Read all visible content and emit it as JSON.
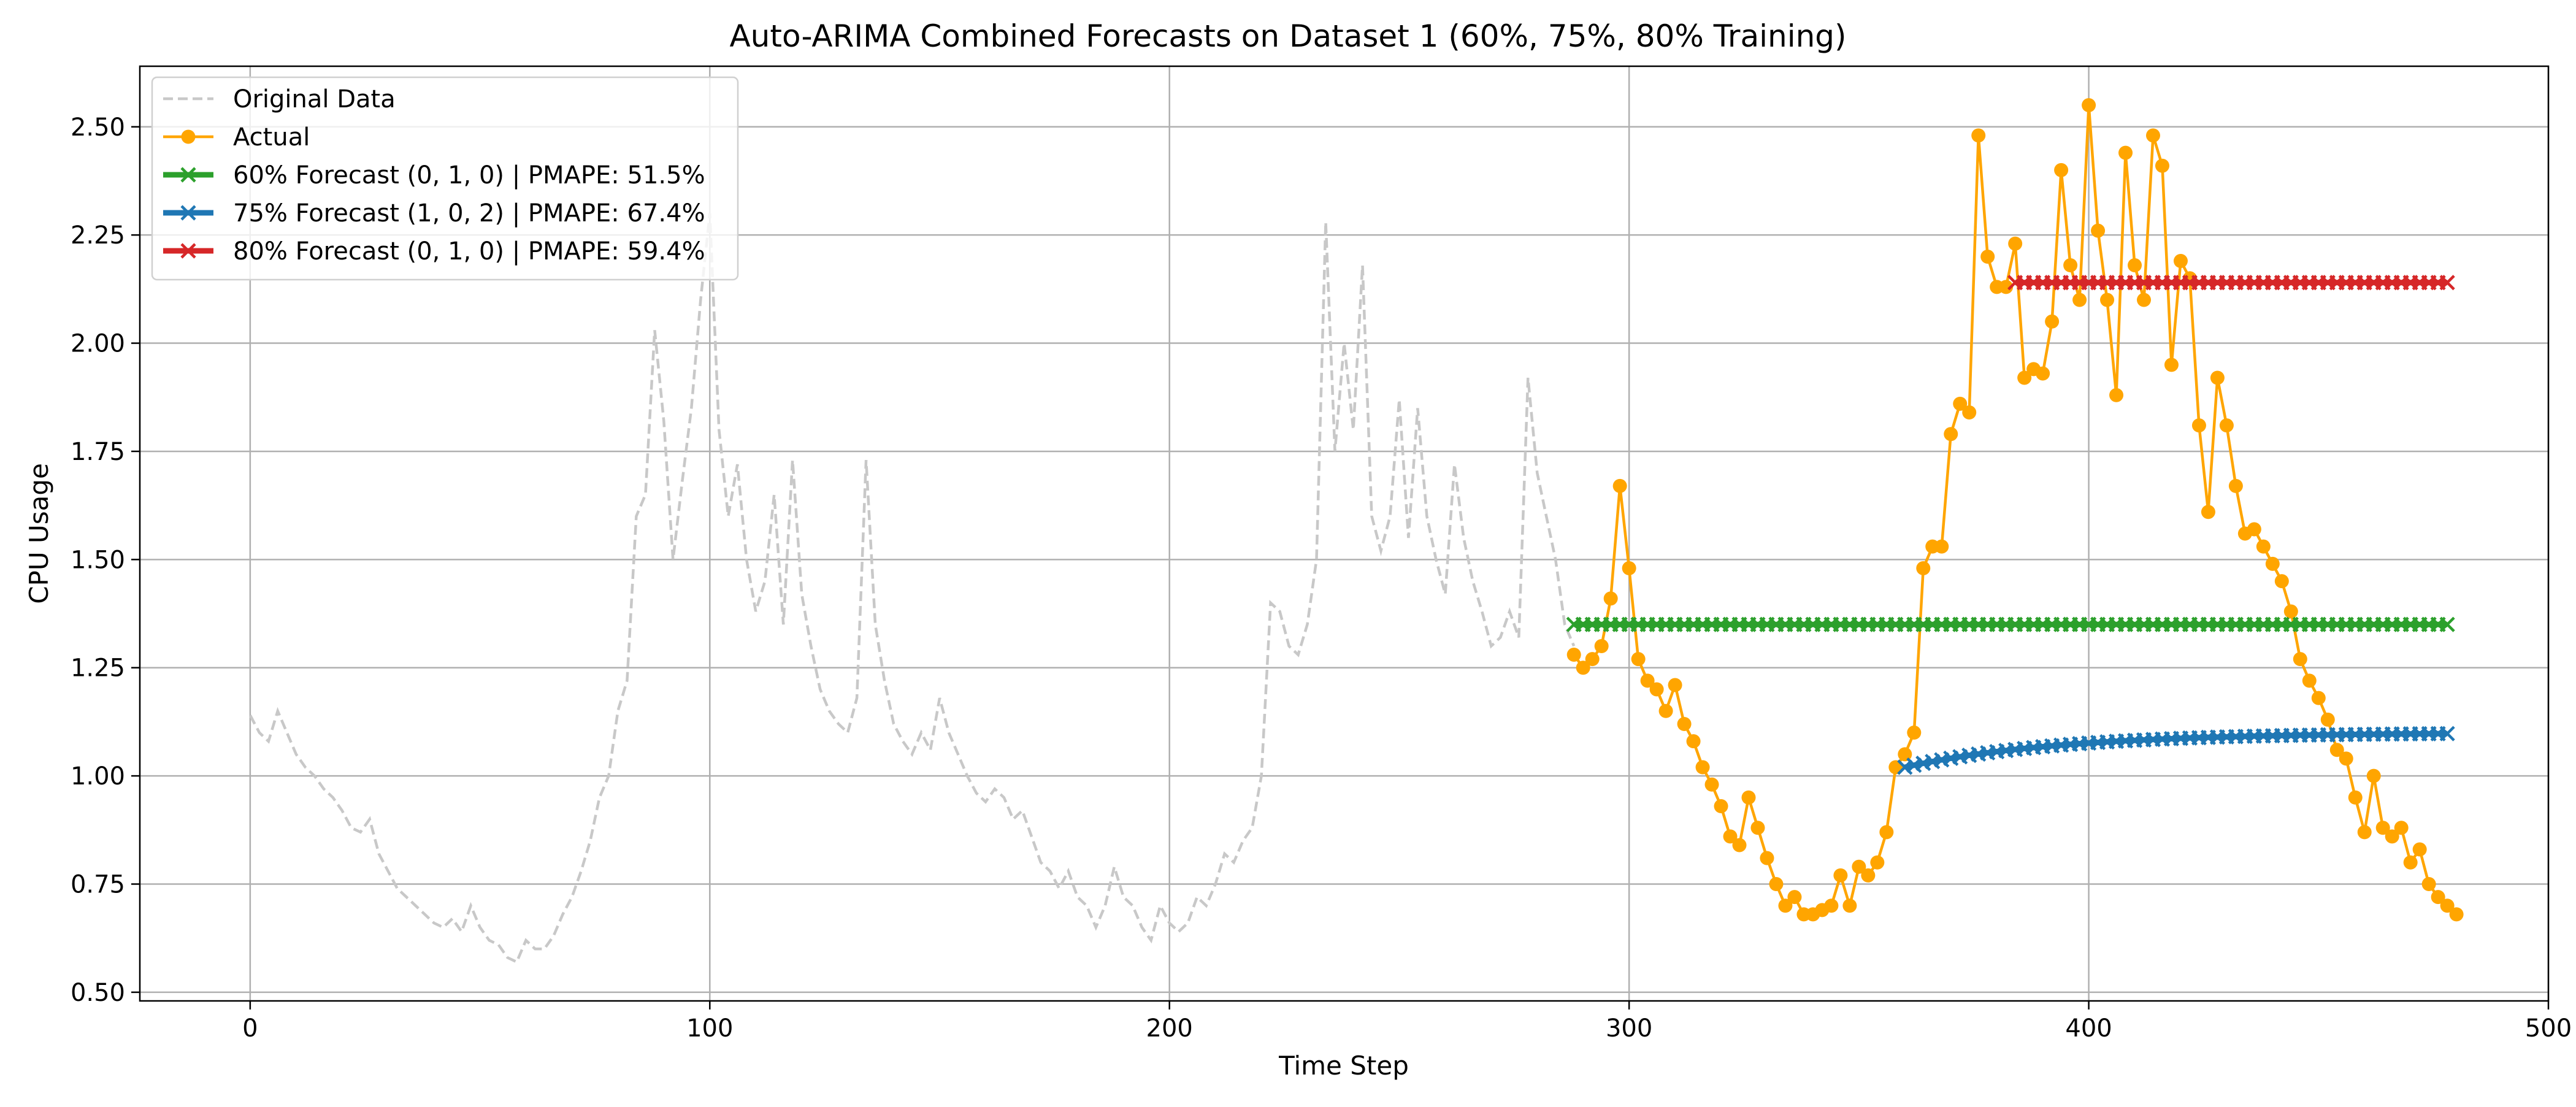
{
  "chart_data": {
    "type": "line",
    "title": "Auto-ARIMA Combined Forecasts on Dataset 1 (60%, 75%, 80% Training)",
    "xlabel": "Time Step",
    "ylabel": "CPU Usage",
    "xlim": [
      -24,
      500
    ],
    "ylim": [
      0.48,
      2.64
    ],
    "xticks": [
      0,
      100,
      200,
      300,
      400,
      500
    ],
    "xtick_labels": [
      "0",
      "100",
      "200",
      "300",
      "400",
      "500"
    ],
    "yticks": [
      0.5,
      0.75,
      1.0,
      1.25,
      1.5,
      1.75,
      2.0,
      2.25,
      2.5
    ],
    "ytick_labels": [
      "0.50",
      "0.75",
      "1.00",
      "1.25",
      "1.50",
      "1.75",
      "2.00",
      "2.25",
      "2.50"
    ],
    "grid": true,
    "legend_position": "top-left",
    "legend": [
      {
        "label": "Original Data",
        "series": "original"
      },
      {
        "label": "Actual",
        "series": "actual"
      },
      {
        "label": "60% Forecast (0, 1, 0) | PMAPE: 51.5%",
        "series": "f60"
      },
      {
        "label": "75% Forecast (1, 0, 2) | PMAPE: 67.4%",
        "series": "f75"
      },
      {
        "label": "80% Forecast (0, 1, 0) | PMAPE: 59.4%",
        "series": "f80"
      }
    ],
    "colors": {
      "original": "#c8c8c8",
      "actual": "#ffa500",
      "f60": "#2ca02c",
      "f75": "#1f77b4",
      "f80": "#d62728"
    },
    "series": [
      {
        "id": "original",
        "name": "Original Data",
        "style": "dashed",
        "x": [
          0,
          2,
          4,
          6,
          8,
          10,
          12,
          14,
          16,
          18,
          20,
          22,
          24,
          26,
          28,
          30,
          32,
          34,
          36,
          38,
          40,
          42,
          44,
          46,
          48,
          50,
          52,
          54,
          56,
          58,
          60,
          62,
          64,
          66,
          68,
          70,
          72,
          74,
          76,
          78,
          80,
          82,
          84,
          86,
          88,
          90,
          92,
          94,
          96,
          98,
          100,
          102,
          104,
          106,
          108,
          110,
          112,
          114,
          116,
          118,
          120,
          122,
          124,
          126,
          128,
          130,
          132,
          134,
          136,
          138,
          140,
          142,
          144,
          146,
          148,
          150,
          152,
          154,
          156,
          158,
          160,
          162,
          164,
          166,
          168,
          170,
          172,
          174,
          176,
          178,
          180,
          182,
          184,
          186,
          188,
          190,
          192,
          194,
          196,
          198,
          200,
          202,
          204,
          206,
          208,
          210,
          212,
          214,
          216,
          218,
          220,
          222,
          224,
          226,
          228,
          230,
          232,
          234,
          236,
          238,
          240,
          242,
          244,
          246,
          248,
          250,
          252,
          254,
          256,
          258,
          260,
          262,
          264,
          266,
          268,
          270,
          272,
          274,
          276,
          278,
          280,
          282,
          284,
          286,
          288
        ],
        "y": [
          1.14,
          1.1,
          1.08,
          1.15,
          1.1,
          1.05,
          1.02,
          1.0,
          0.97,
          0.95,
          0.92,
          0.88,
          0.87,
          0.9,
          0.82,
          0.78,
          0.74,
          0.72,
          0.7,
          0.68,
          0.66,
          0.65,
          0.67,
          0.64,
          0.7,
          0.65,
          0.62,
          0.61,
          0.58,
          0.57,
          0.62,
          0.6,
          0.6,
          0.63,
          0.68,
          0.72,
          0.78,
          0.85,
          0.95,
          1.0,
          1.15,
          1.22,
          1.6,
          1.65,
          2.03,
          1.82,
          1.5,
          1.68,
          1.85,
          2.1,
          2.3,
          1.8,
          1.6,
          1.72,
          1.5,
          1.38,
          1.45,
          1.65,
          1.35,
          1.73,
          1.42,
          1.3,
          1.2,
          1.15,
          1.12,
          1.1,
          1.18,
          1.73,
          1.35,
          1.22,
          1.12,
          1.08,
          1.05,
          1.1,
          1.06,
          1.18,
          1.1,
          1.05,
          1.0,
          0.96,
          0.94,
          0.97,
          0.95,
          0.9,
          0.92,
          0.86,
          0.8,
          0.78,
          0.74,
          0.78,
          0.72,
          0.7,
          0.65,
          0.7,
          0.79,
          0.72,
          0.7,
          0.65,
          0.62,
          0.7,
          0.66,
          0.64,
          0.66,
          0.72,
          0.7,
          0.75,
          0.82,
          0.8,
          0.85,
          0.88,
          1.0,
          1.4,
          1.38,
          1.3,
          1.28,
          1.35,
          1.5,
          2.28,
          1.75,
          2.0,
          1.8,
          2.18,
          1.6,
          1.52,
          1.6,
          1.87,
          1.55,
          1.85,
          1.6,
          1.5,
          1.42,
          1.72,
          1.55,
          1.45,
          1.38,
          1.3,
          1.32,
          1.38,
          1.32,
          1.92,
          1.7,
          1.6,
          1.5,
          1.35,
          1.3
        ]
      },
      {
        "id": "actual",
        "name": "Actual",
        "style": "solid-markers",
        "x": [
          288,
          290,
          292,
          294,
          296,
          298,
          300,
          302,
          304,
          306,
          308,
          310,
          312,
          314,
          316,
          318,
          320,
          322,
          324,
          326,
          328,
          330,
          332,
          334,
          336,
          338,
          340,
          342,
          344,
          346,
          348,
          350,
          352,
          354,
          356,
          358,
          360,
          362,
          364,
          366,
          368,
          370,
          372,
          374,
          376,
          378,
          380,
          382,
          384,
          386,
          388,
          390,
          392,
          394,
          396,
          398,
          400,
          402,
          404,
          406,
          408,
          410,
          412,
          414,
          416,
          418,
          420,
          422,
          424,
          426,
          428,
          430,
          432,
          434,
          436,
          438,
          440,
          442,
          444,
          446,
          448,
          450,
          452,
          454,
          456,
          458,
          460,
          462,
          464,
          466,
          468,
          470,
          472,
          474,
          476,
          478,
          480
        ],
        "y": [
          1.28,
          1.25,
          1.27,
          1.3,
          1.41,
          1.67,
          1.48,
          1.27,
          1.22,
          1.2,
          1.15,
          1.21,
          1.12,
          1.08,
          1.02,
          0.98,
          0.93,
          0.86,
          0.84,
          0.95,
          0.88,
          0.81,
          0.75,
          0.7,
          0.72,
          0.68,
          0.68,
          0.69,
          0.7,
          0.77,
          0.7,
          0.79,
          0.77,
          0.8,
          0.87,
          1.02,
          1.05,
          1.1,
          1.48,
          1.53,
          1.53,
          1.79,
          1.86,
          1.84,
          2.48,
          2.2,
          2.13,
          2.13,
          2.23,
          1.92,
          1.94,
          1.93,
          2.05,
          2.4,
          2.18,
          2.1,
          2.55,
          2.26,
          2.1,
          1.88,
          2.44,
          2.18,
          2.1,
          2.48,
          2.41,
          1.95,
          2.19,
          2.15,
          1.81,
          1.61,
          1.92,
          1.81,
          1.67,
          1.56,
          1.57,
          1.53,
          1.49,
          1.45,
          1.38,
          1.27,
          1.22,
          1.18,
          1.13,
          1.06,
          1.04,
          0.95,
          0.87,
          1.0,
          0.88,
          0.86,
          0.88,
          0.8,
          0.83,
          0.75,
          0.72,
          0.7,
          0.68
        ]
      },
      {
        "id": "f60",
        "name": "60% Forecast (0, 1, 0) | PMAPE: 51.5%",
        "style": "thick-x",
        "x_start": 288,
        "x_end": 479,
        "marker_step": 2,
        "level": 1.35
      },
      {
        "id": "f75",
        "name": "75% Forecast (1, 0, 2) | PMAPE: 67.4%",
        "style": "thick-x",
        "x_start": 360,
        "x_end": 479,
        "marker_step": 2,
        "start_value": 1.02,
        "asymptote": 1.1,
        "decay": 0.03
      },
      {
        "id": "f80",
        "name": "80% Forecast (0, 1, 0) | PMAPE: 59.4%",
        "style": "thick-x",
        "x_start": 384,
        "x_end": 479,
        "marker_step": 2,
        "level": 2.14
      }
    ]
  }
}
